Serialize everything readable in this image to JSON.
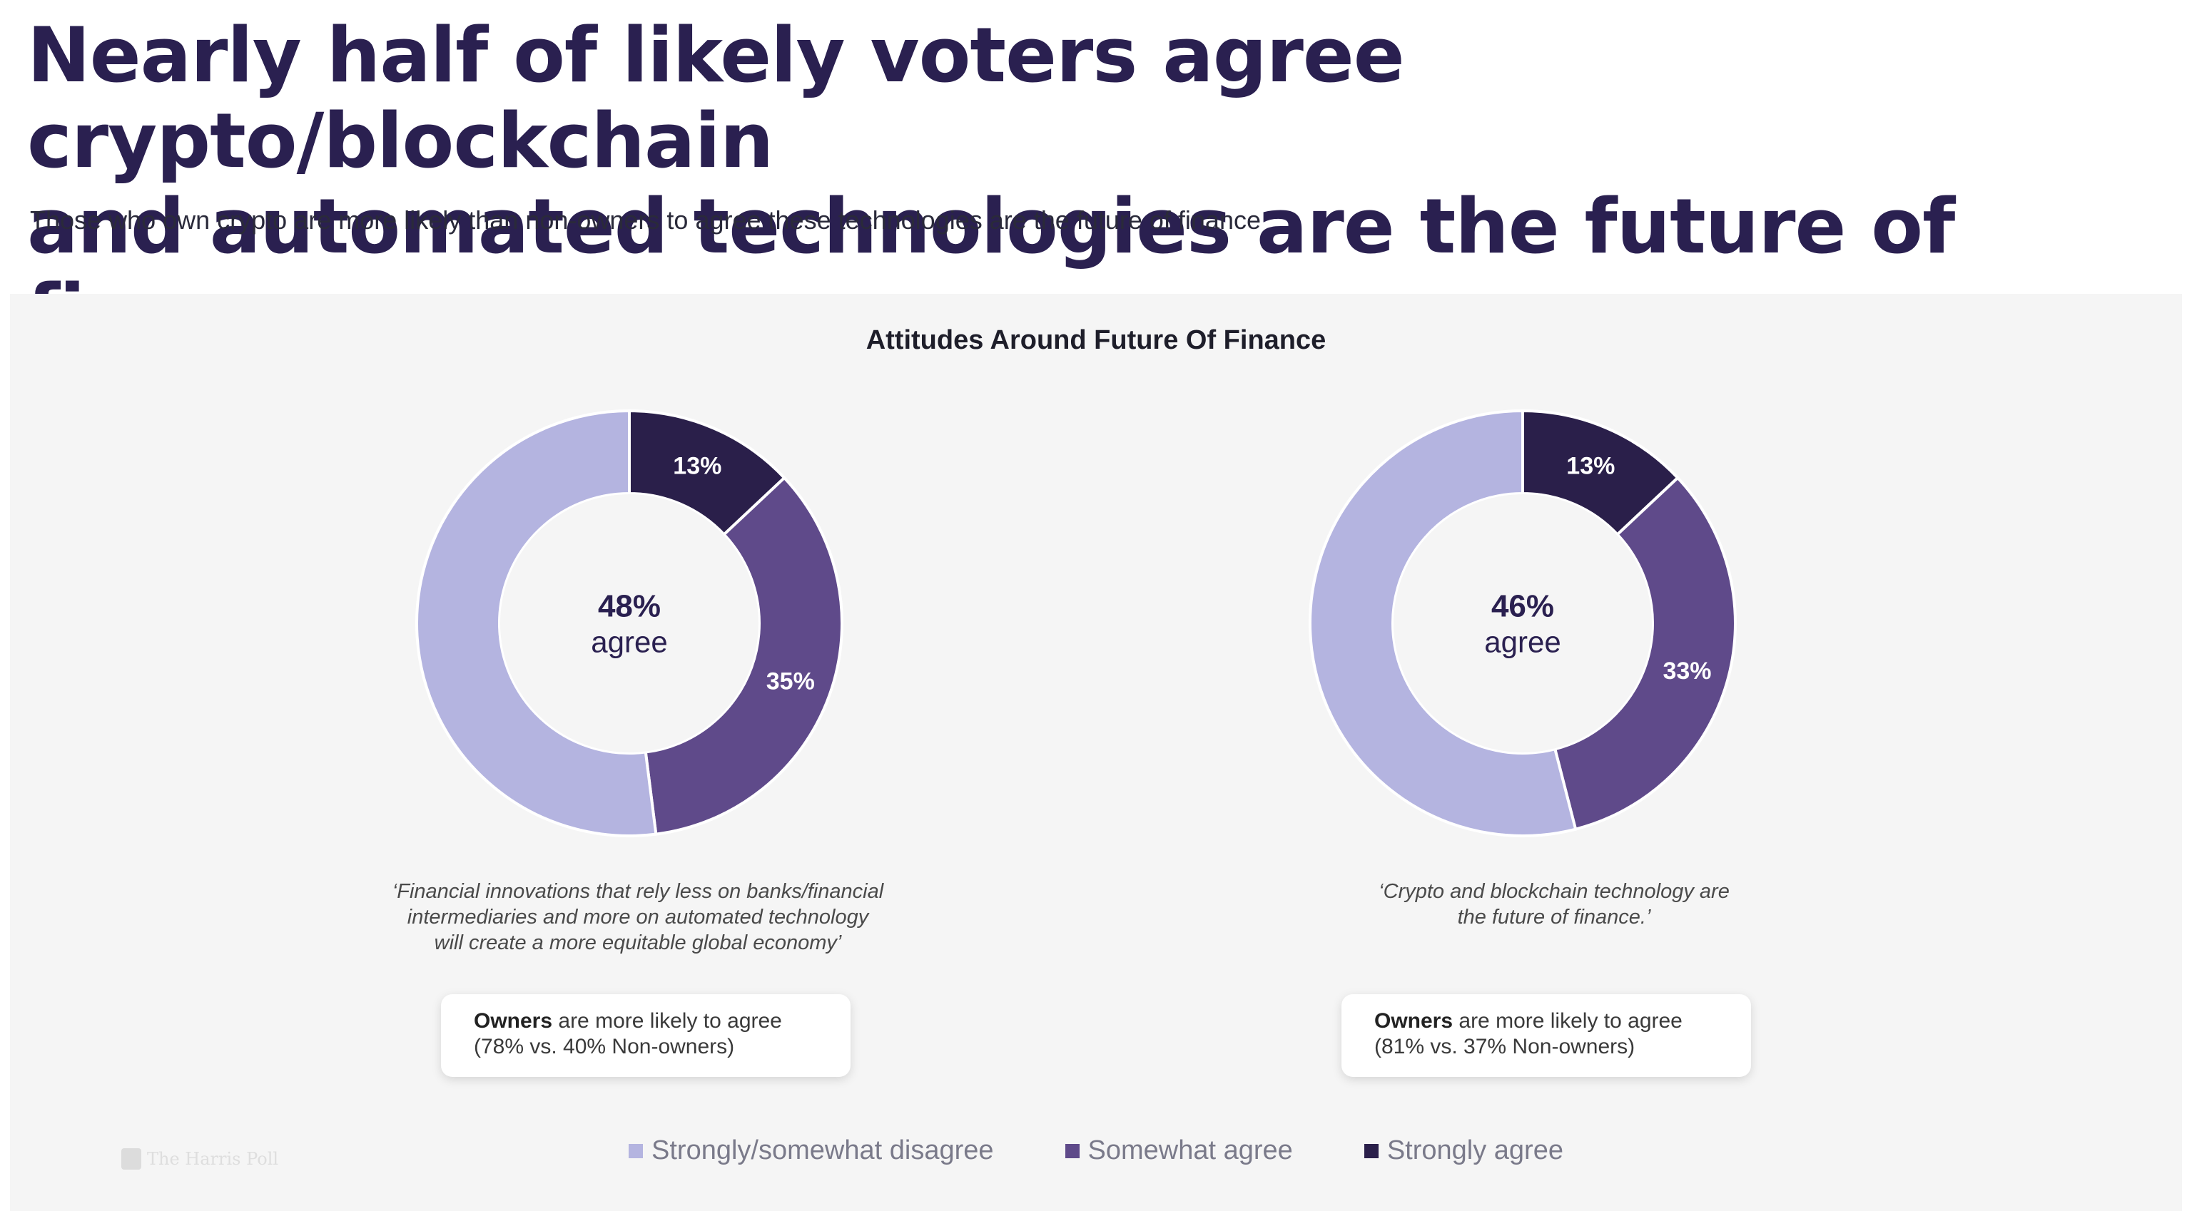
{
  "title_line1": "Nearly half of likely voters agree crypto/blockchain",
  "title_line2": "and automated technologies are the future of finance",
  "subtitle": "Those who own crypto are more likely than non-owners to agree these technologies are the future of finance",
  "colors": {
    "disagree": "#b4b4e0",
    "somewhat": "#5f4a8a",
    "strongly": "#2a1f4a"
  },
  "logo_text": "The Harris Poll",
  "chart_data": {
    "type": "pie",
    "title": "Attitudes Around Future Of Finance",
    "legend_position": "bottom",
    "legend": [
      "Strongly/somewhat disagree",
      "Somewhat agree",
      "Strongly agree"
    ],
    "donuts": [
      {
        "center_value": "48%",
        "center_label": "agree",
        "slices": [
          {
            "name": "Strongly agree",
            "value": 13,
            "label": "13%"
          },
          {
            "name": "Somewhat agree",
            "value": 35,
            "label": "35%"
          },
          {
            "name": "Strongly/somewhat disagree",
            "value": 52,
            "label": ""
          }
        ],
        "caption": "‘Financial innovations that rely less on banks/financial\nintermediaries and more on automated technology\nwill create a more equitable global economy’",
        "note_bold": "Owners",
        "note_text": " are more likely to agree",
        "note_line2": "(78% vs. 40% Non-owners)"
      },
      {
        "center_value": "46%",
        "center_label": "agree",
        "slices": [
          {
            "name": "Strongly agree",
            "value": 13,
            "label": "13%"
          },
          {
            "name": "Somewhat agree",
            "value": 33,
            "label": "33%"
          },
          {
            "name": "Strongly/somewhat disagree",
            "value": 54,
            "label": ""
          }
        ],
        "caption": "‘Crypto and blockchain technology are\nthe future of finance.’",
        "note_bold": "Owners",
        "note_text": " are more likely to agree",
        "note_line2": "(81% vs. 37% Non-owners)"
      }
    ]
  }
}
